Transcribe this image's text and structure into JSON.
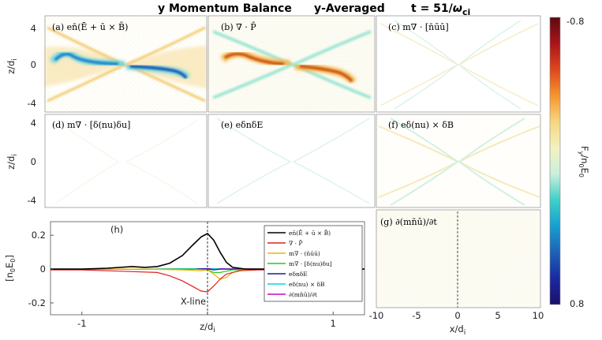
{
  "title": {
    "left": "y Momentum Balance",
    "middle": "y-Averaged",
    "right_prefix": "t = 51/",
    "right_omega": "ω",
    "right_sub": "ci"
  },
  "colorbar": {
    "top": "-0.8",
    "bottom": "0.8",
    "label": "F",
    "label_sub": "y",
    "label_mid": "/n",
    "label_sub2": "0",
    "label_end": "E",
    "label_sub3": "0",
    "colors": [
      "#5e0a10",
      "#a8151a",
      "#e0461c",
      "#f4962e",
      "#f8d67f",
      "#f4f1c0",
      "#c9f0dc",
      "#3fd0c8",
      "#169fd0",
      "#1d62b6",
      "#1a2aa0",
      "#1a0f6b"
    ]
  },
  "panel_labels": {
    "a": "(a) en̄(Ē + ū × B̄)",
    "b": "(b) ∇ · P̄",
    "c": "(c) m∇ · [n̄ūū]",
    "d": "(d) m∇ · [δ(nu)δu]",
    "e": "(e) eδnδE",
    "f": "(f) eδ(nu) × δB",
    "g": "(g) ∂(mn̄ū)/∂t",
    "h": "(h)"
  },
  "axes": {
    "z_label": "z/d",
    "z_sub": "i",
    "z_ticks": [
      "4",
      "0",
      "-4"
    ],
    "x_label": "x/d",
    "x_sub": "i",
    "x_ticks": [
      "-10",
      "-5",
      "0",
      "5",
      "10"
    ],
    "h_ylabel": "[n",
    "h_ylabel_sub": "0",
    "h_ylabel_mid": "E",
    "h_ylabel_sub2": "0",
    "h_ylabel_end": "]",
    "h_yticks": [
      "0.2",
      "0",
      "-0.2"
    ],
    "h_xticks": [
      "-1",
      "0",
      "1"
    ],
    "h_xlabel": "z/d",
    "h_xsub": "i",
    "xline_label": "X-line"
  },
  "chart_data": {
    "type": "line",
    "title": "(h)",
    "xlabel": "z/d_i",
    "ylabel": "[n_0 E_0]",
    "xlim": [
      -1.25,
      1.25
    ],
    "ylim": [
      -0.27,
      0.28
    ],
    "annotations": [
      "X-line at z/d_i = 0"
    ],
    "series": [
      {
        "name": "en̄(Ē + ū × B̄)",
        "color": "#000000",
        "x": [
          -1.25,
          -1.0,
          -0.8,
          -0.6,
          -0.5,
          -0.4,
          -0.3,
          -0.2,
          -0.12,
          -0.05,
          0.0,
          0.05,
          0.1,
          0.15,
          0.2,
          0.3,
          0.5,
          0.8,
          1.0,
          1.25
        ],
        "y": [
          0.0,
          0.0,
          0.005,
          0.015,
          0.01,
          0.015,
          0.035,
          0.08,
          0.14,
          0.19,
          0.21,
          0.17,
          0.1,
          0.04,
          0.01,
          0.0,
          0.0,
          0.0,
          0.0,
          0.0
        ]
      },
      {
        "name": "∇ · P̄",
        "color": "#e0201c",
        "x": [
          -1.25,
          -1.0,
          -0.8,
          -0.6,
          -0.4,
          -0.3,
          -0.2,
          -0.1,
          -0.05,
          0.0,
          0.05,
          0.1,
          0.15,
          0.25,
          0.4,
          0.6,
          0.8,
          1.0,
          1.25
        ],
        "y": [
          -0.005,
          -0.005,
          -0.01,
          -0.015,
          -0.02,
          -0.04,
          -0.07,
          -0.11,
          -0.13,
          -0.135,
          -0.1,
          -0.06,
          -0.03,
          -0.01,
          -0.005,
          -0.005,
          -0.003,
          -0.002,
          0.0
        ]
      },
      {
        "name": "m∇ · (n̄ūū)",
        "color": "#f0b400",
        "x": [
          -1.25,
          -0.5,
          -0.2,
          -0.05,
          0.0,
          0.05,
          0.1,
          0.15,
          0.2,
          0.3,
          0.5,
          1.25
        ],
        "y": [
          0.0,
          0.0,
          -0.005,
          -0.01,
          -0.005,
          -0.03,
          -0.06,
          -0.05,
          -0.02,
          -0.005,
          0.0,
          0.0
        ]
      },
      {
        "name": "m∇ · [δ(nu)δu]",
        "color": "#22cc22",
        "x": [
          -1.25,
          -0.5,
          -0.1,
          0.0,
          0.05,
          0.1,
          0.2,
          0.4,
          1.25
        ],
        "y": [
          0.0,
          0.0,
          0.0,
          -0.005,
          -0.02,
          -0.02,
          -0.005,
          0.0,
          0.0
        ]
      },
      {
        "name": "eδnδE",
        "color": "#1a1aa0",
        "x": [
          -1.25,
          -0.5,
          -0.1,
          0.0,
          0.05,
          0.1,
          0.3,
          1.25
        ],
        "y": [
          0.0,
          0.0,
          0.0,
          0.002,
          -0.005,
          0.0,
          0.0,
          0.0
        ]
      },
      {
        "name": "eδ(nu) × δB",
        "color": "#00d8e8",
        "x": [
          -1.25,
          -0.5,
          -0.1,
          0.0,
          0.05,
          0.1,
          0.3,
          1.25
        ],
        "y": [
          0.0,
          0.0,
          0.002,
          -0.005,
          0.003,
          0.0,
          0.0,
          0.0
        ]
      },
      {
        "name": "∂(mn̄ū)/∂t",
        "color": "#cc00cc",
        "x": [
          -1.25,
          -0.5,
          0.0,
          0.5,
          1.25
        ],
        "y": [
          0.0,
          0.0,
          0.002,
          0.0,
          0.0
        ]
      }
    ]
  }
}
